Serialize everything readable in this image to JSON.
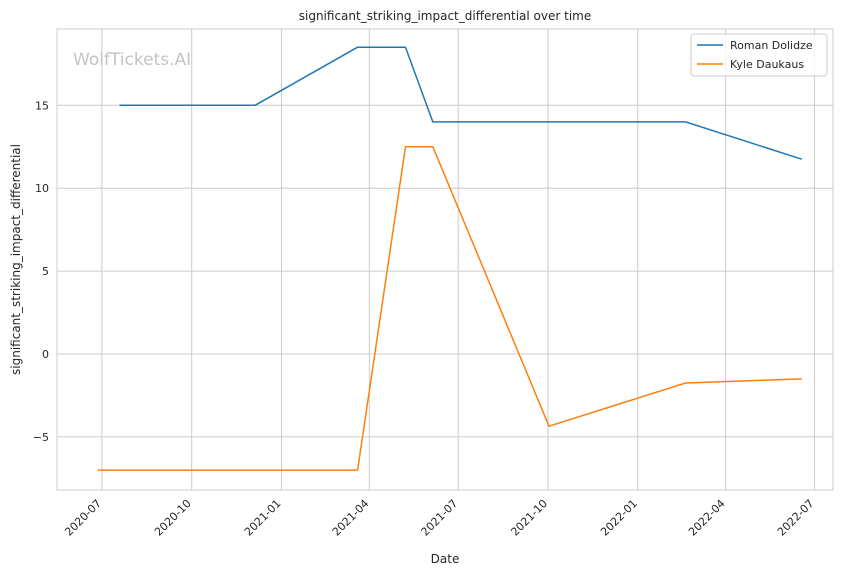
{
  "chart_data": {
    "type": "line",
    "title": "significant_striking_impact_differential over time",
    "xlabel": "Date",
    "ylabel": "significant_striking_impact_differential",
    "watermark": "WolfTickets.AI",
    "x_ticks": [
      "2020-07",
      "2020-10",
      "2021-01",
      "2021-04",
      "2021-07",
      "2021-10",
      "2022-01",
      "2022-04",
      "2022-07"
    ],
    "y_ticks": [
      -5,
      0,
      5,
      10,
      15
    ],
    "y_tick_labels": [
      "−5",
      "0",
      "5",
      "10",
      "15"
    ],
    "ylim": [
      -8.2,
      19.6
    ],
    "xlim": [
      "2020-05-16",
      "2022-07-20"
    ],
    "grid": true,
    "legend_position": "top-right",
    "series": [
      {
        "name": "Roman Dolidze",
        "color": "#1f77b4",
        "points": [
          {
            "x": "2020-07-19",
            "y": 15.0
          },
          {
            "x": "2020-12-05",
            "y": 15.0
          },
          {
            "x": "2021-03-20",
            "y": 18.5
          },
          {
            "x": "2021-05-08",
            "y": 18.5
          },
          {
            "x": "2021-06-05",
            "y": 14.0
          },
          {
            "x": "2022-02-19",
            "y": 14.0
          },
          {
            "x": "2022-06-18",
            "y": 11.75
          }
        ]
      },
      {
        "name": "Kyle Daukaus",
        "color": "#ff7f0e",
        "points": [
          {
            "x": "2020-06-27",
            "y": -7.0
          },
          {
            "x": "2021-03-20",
            "y": -7.0
          },
          {
            "x": "2021-05-08",
            "y": 12.5
          },
          {
            "x": "2021-06-05",
            "y": 12.5
          },
          {
            "x": "2021-10-02",
            "y": -4.35
          },
          {
            "x": "2022-02-19",
            "y": -1.75
          },
          {
            "x": "2022-06-18",
            "y": -1.5
          }
        ]
      }
    ]
  }
}
